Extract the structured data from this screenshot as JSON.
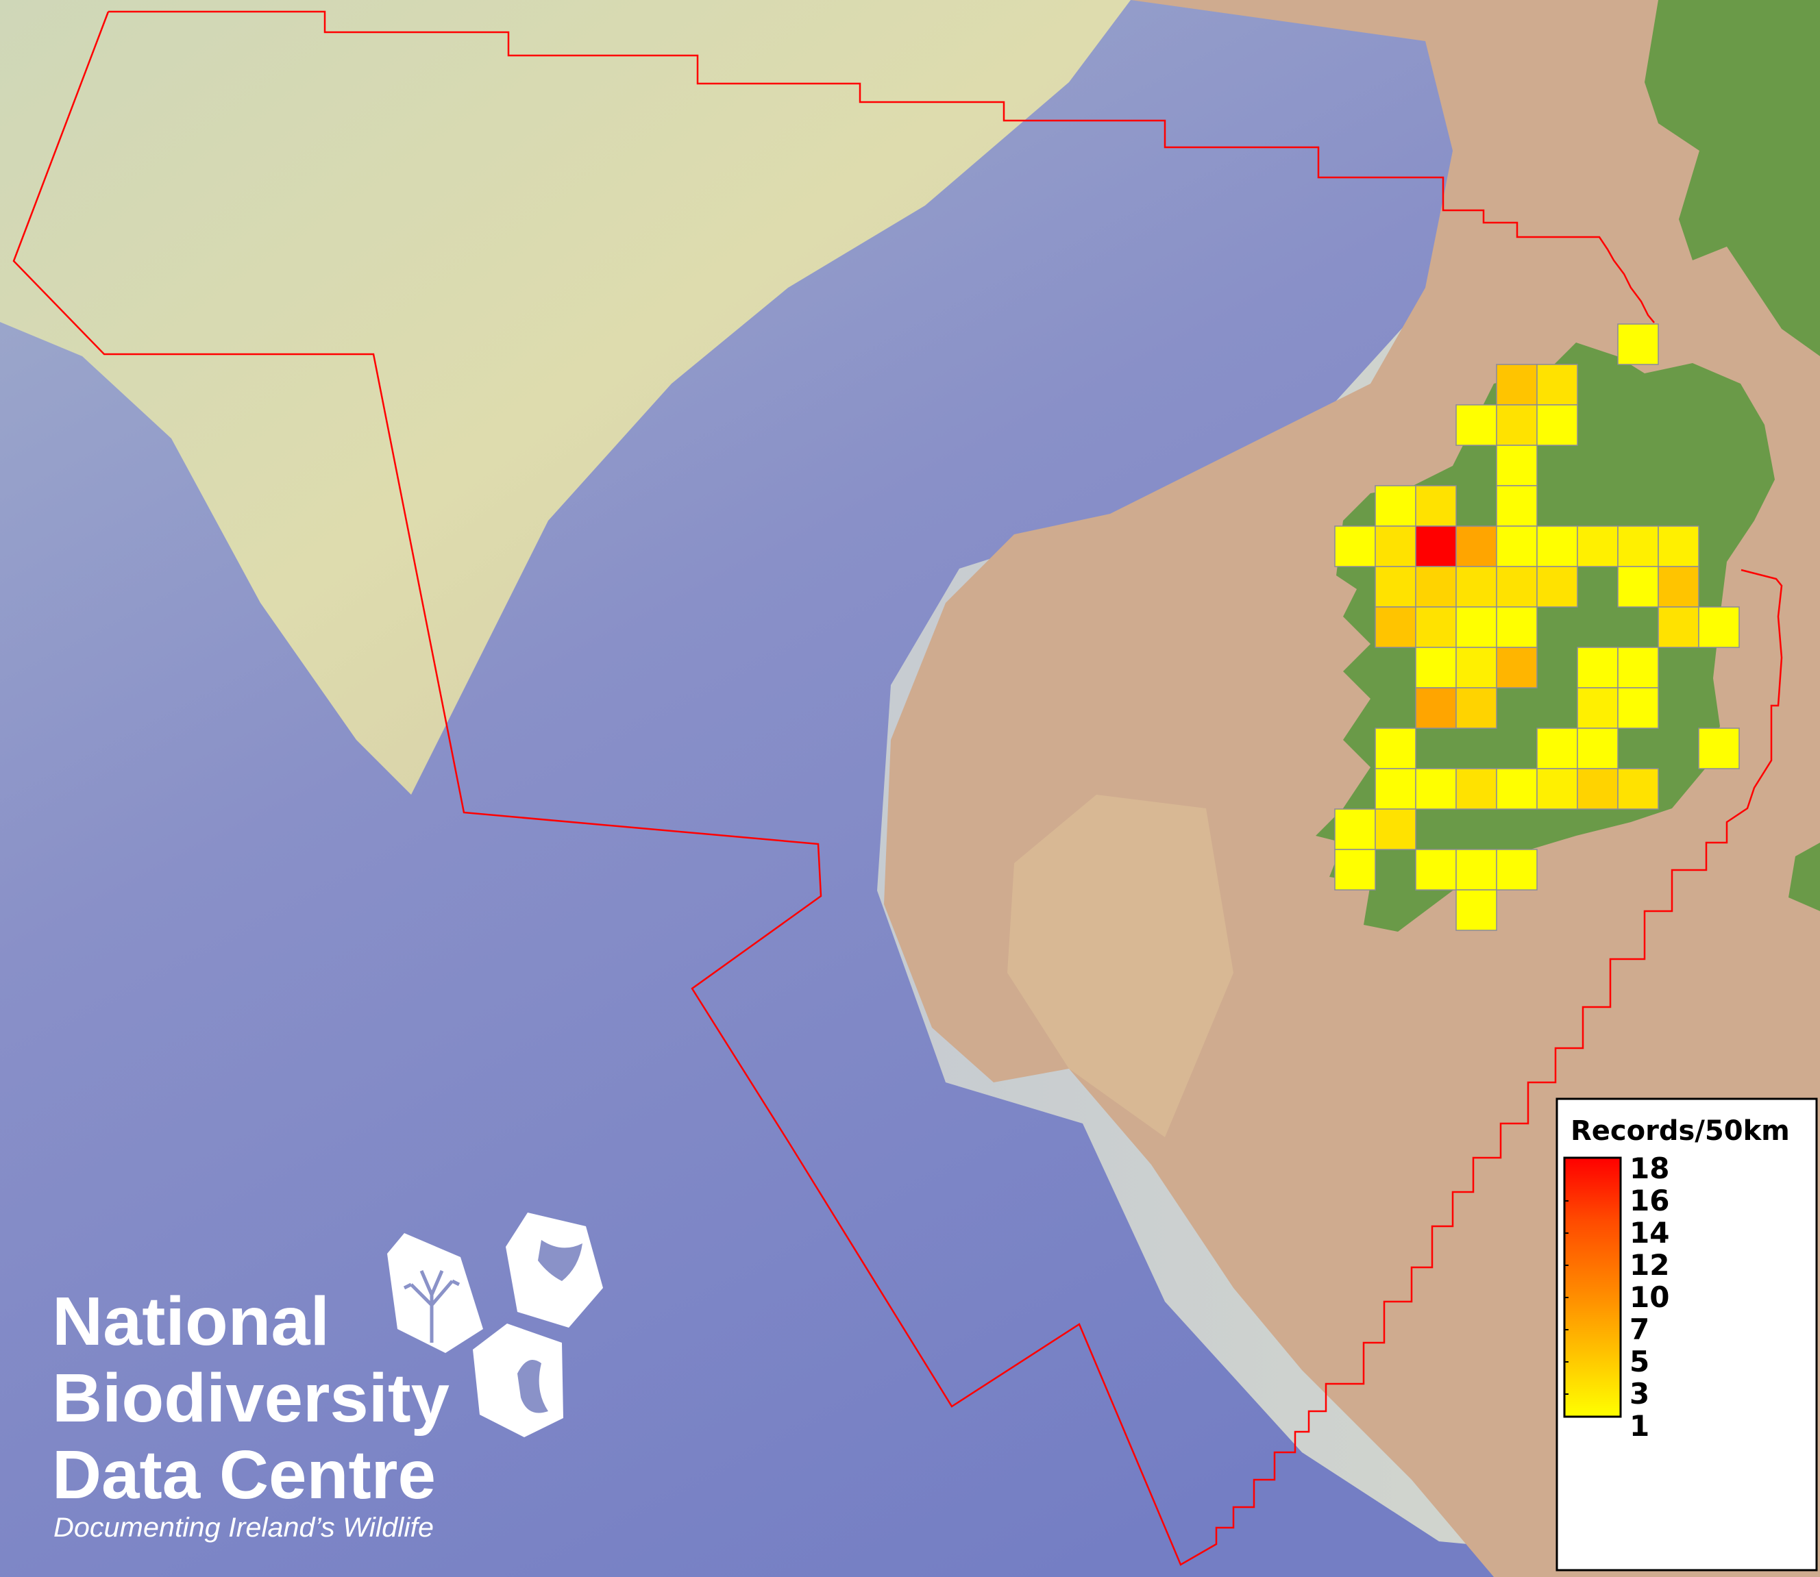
{
  "map": {
    "colors": {
      "deep_sea": "#7b84c6",
      "slope": "#c9cfd6",
      "shelf_pale": "#d9dcb0",
      "shelf": "#cfad92",
      "land": "#6a9a48",
      "boundary": "#ff0000",
      "grid_stroke": "#8a8a9a"
    },
    "grid": {
      "cell_unit": "50km",
      "records": [
        [
          null,
          null,
          null,
          null,
          null,
          null,
          null,
          1,
          null,
          null
        ],
        [
          null,
          null,
          null,
          null,
          5,
          3,
          null,
          null,
          null,
          null
        ],
        [
          null,
          null,
          null,
          1,
          3,
          1,
          null,
          null,
          null,
          null
        ],
        [
          null,
          null,
          null,
          null,
          1,
          null,
          null,
          null,
          null,
          null
        ],
        [
          null,
          1,
          3,
          null,
          1,
          null,
          null,
          null,
          null,
          null
        ],
        [
          1,
          3,
          18,
          7,
          1,
          1,
          2,
          2,
          2,
          null
        ],
        [
          null,
          3,
          4,
          3,
          3,
          3,
          null,
          1,
          5,
          null
        ],
        [
          null,
          5,
          3,
          1,
          1,
          null,
          null,
          null,
          3,
          1
        ],
        [
          null,
          null,
          1,
          2,
          6,
          null,
          1,
          1,
          null,
          null
        ],
        [
          null,
          null,
          7,
          4,
          null,
          null,
          2,
          1,
          null,
          null
        ],
        [
          null,
          1,
          null,
          null,
          null,
          1,
          1,
          null,
          null,
          1
        ],
        [
          null,
          1,
          1,
          3,
          1,
          2,
          4,
          3,
          null,
          null
        ],
        [
          1,
          3,
          null,
          null,
          null,
          null,
          null,
          null,
          null,
          null
        ],
        [
          1,
          null,
          1,
          1,
          1,
          null,
          null,
          null,
          null,
          null
        ],
        [
          null,
          null,
          null,
          1,
          null,
          null,
          null,
          null,
          null,
          null
        ]
      ]
    }
  },
  "legend": {
    "title": "Records/50km",
    "labels": [
      "18",
      "16",
      "14",
      "12",
      "10",
      "7",
      "5",
      "3",
      "1"
    ],
    "min": 1,
    "max": 18,
    "color_stops": [
      {
        "value": 1,
        "color": "#ffff00"
      },
      {
        "value": 5,
        "color": "#ffc400"
      },
      {
        "value": 7,
        "color": "#ffa500"
      },
      {
        "value": 10,
        "color": "#ff8400"
      },
      {
        "value": 14,
        "color": "#ff4a00"
      },
      {
        "value": 18,
        "color": "#ff0000"
      }
    ]
  },
  "logo": {
    "line1": "National",
    "line2": "Biodiversity",
    "line3": "Data Centre",
    "tagline": "Documenting Ireland’s Wildlife",
    "icons": [
      "tree-icon",
      "butterfly-icon",
      "seahorse-icon"
    ]
  }
}
